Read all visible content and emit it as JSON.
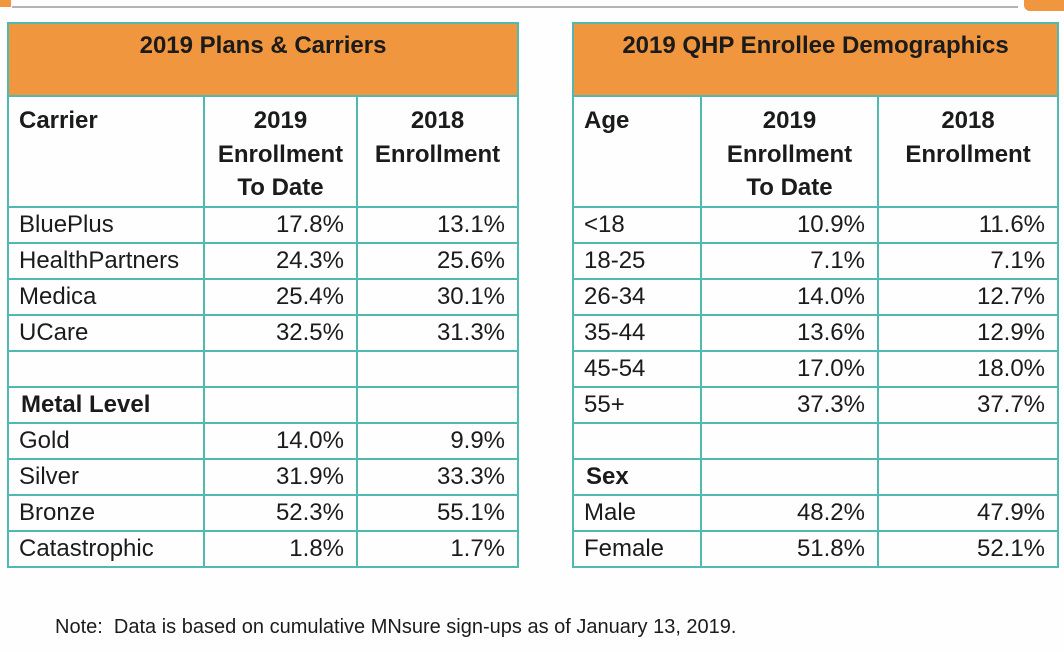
{
  "colors": {
    "accent_orange": "#f0963e",
    "border_teal": "#52b9b1",
    "divider_gray": "#b3b3b3",
    "text": "#1b1b1b"
  },
  "tables": {
    "plans_carriers": {
      "title": "2019 Plans & Carriers",
      "columns": [
        "Carrier",
        "2019\nEnrollment\nTo Date",
        "2018\nEnrollment"
      ],
      "rows": [
        {
          "label": "BluePlus",
          "v2019": "17.8%",
          "v2018": "13.1%",
          "bold": false
        },
        {
          "label": "HealthPartners",
          "v2019": "24.3%",
          "v2018": "25.6%",
          "bold": false
        },
        {
          "label": "Medica",
          "v2019": "25.4%",
          "v2018": "30.1%",
          "bold": false
        },
        {
          "label": "UCare",
          "v2019": "32.5%",
          "v2018": "31.3%",
          "bold": false
        },
        {
          "label": "",
          "v2019": "",
          "v2018": "",
          "bold": false
        },
        {
          "label": "Metal Level",
          "v2019": "",
          "v2018": "",
          "bold": true
        },
        {
          "label": "Gold",
          "v2019": "14.0%",
          "v2018": "9.9%",
          "bold": false
        },
        {
          "label": "Silver",
          "v2019": "31.9%",
          "v2018": "33.3%",
          "bold": false
        },
        {
          "label": "Bronze",
          "v2019": "52.3%",
          "v2018": "55.1%",
          "bold": false
        },
        {
          "label": "Catastrophic",
          "v2019": "1.8%",
          "v2018": "1.7%",
          "bold": false
        }
      ]
    },
    "demographics": {
      "title": "2019 QHP Enrollee Demographics",
      "columns": [
        "Age",
        "2019\nEnrollment\nTo Date",
        "2018\nEnrollment"
      ],
      "rows": [
        {
          "label": "<18",
          "v2019": "10.9%",
          "v2018": "11.6%",
          "bold": false
        },
        {
          "label": "18-25",
          "v2019": "7.1%",
          "v2018": "7.1%",
          "bold": false
        },
        {
          "label": "26-34",
          "v2019": "14.0%",
          "v2018": "12.7%",
          "bold": false
        },
        {
          "label": "35-44",
          "v2019": "13.6%",
          "v2018": "12.9%",
          "bold": false
        },
        {
          "label": "45-54",
          "v2019": "17.0%",
          "v2018": "18.0%",
          "bold": false
        },
        {
          "label": "55+",
          "v2019": "37.3%",
          "v2018": "37.7%",
          "bold": false
        },
        {
          "label": "",
          "v2019": "",
          "v2018": "",
          "bold": false
        },
        {
          "label": "Sex",
          "v2019": "",
          "v2018": "",
          "bold": true
        },
        {
          "label": "Male",
          "v2019": "48.2%",
          "v2018": "47.9%",
          "bold": false
        },
        {
          "label": "Female",
          "v2019": "51.8%",
          "v2018": "52.1%",
          "bold": false
        }
      ]
    }
  },
  "note": "Note:  Data is based on cumulative MNsure sign-ups as of January 13, 2019."
}
